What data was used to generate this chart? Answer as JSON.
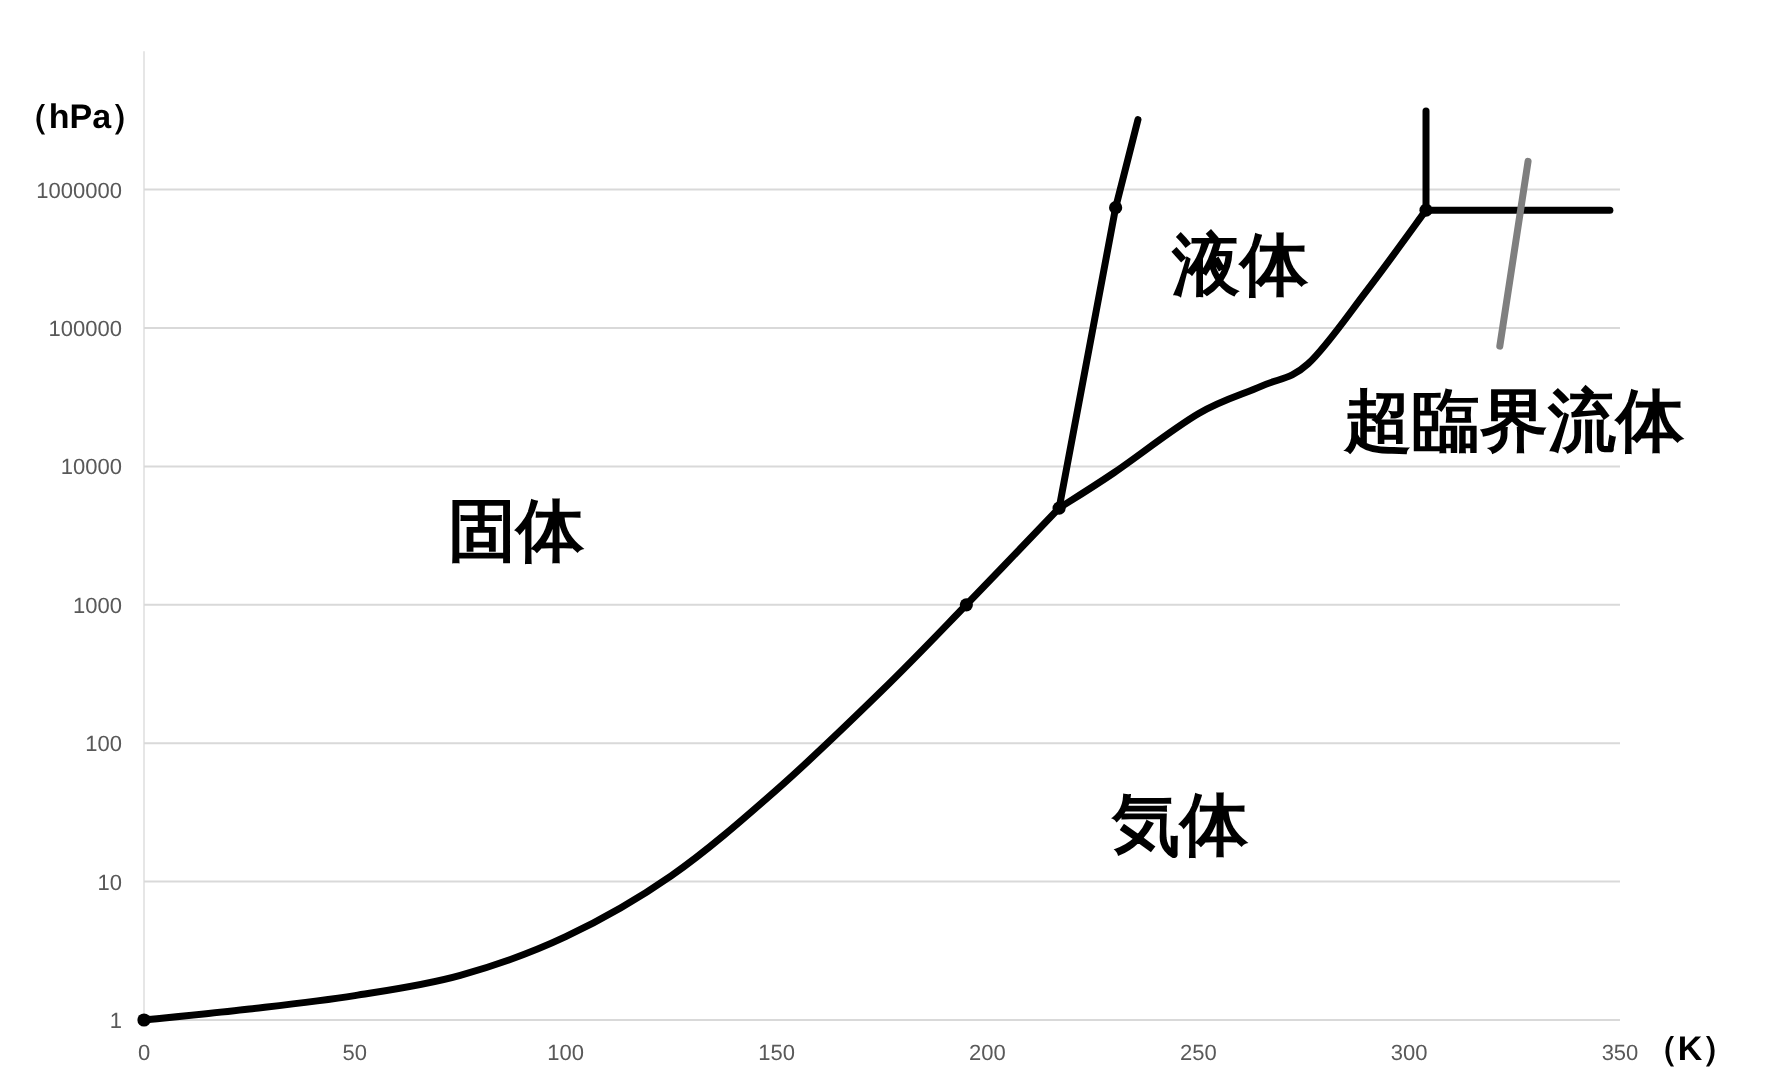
{
  "chart_data": {
    "type": "line",
    "xlabel": "（K）",
    "ylabel": "（hPa）",
    "log": "y",
    "grid": "y",
    "line_style": "solid",
    "xlim": [
      0,
      350
    ],
    "ylim": [
      1,
      10000000
    ],
    "xticks": [
      0,
      50,
      100,
      150,
      200,
      250,
      300,
      350
    ],
    "yticks": [
      1,
      10,
      100,
      1000,
      10000,
      100000,
      1000000
    ],
    "annotations": [
      "固体",
      "液体",
      "気体",
      "超臨界流体"
    ],
    "series": [
      {
        "color": "#000000",
        "x": [
          0,
          25,
          50,
          75,
          100,
          125,
          150,
          175,
          195,
          217
        ],
        "values": [
          1,
          1.2,
          1.5,
          2.1,
          4,
          11,
          46,
          240,
          1000,
          5000
        ]
      },
      {
        "color": "#000000",
        "x": [
          217,
          230.4,
          235.7
        ],
        "values": [
          5000,
          740000,
          3200000
        ]
      },
      {
        "color": "#000000",
        "x": [
          217,
          230,
          250,
          265,
          276,
          290,
          304
        ],
        "values": [
          5000,
          9000,
          24000,
          38000,
          55000,
          187000,
          710000
        ]
      },
      {
        "color": "#000000",
        "x": [
          304,
          304
        ],
        "values": [
          710000,
          3700000
        ]
      },
      {
        "color": "#000000",
        "x": [
          304,
          347.6
        ],
        "values": [
          710000,
          710000
        ]
      },
      {
        "color": "#7f7f7f",
        "x": [
          321.5,
          328.2
        ],
        "values": [
          74000,
          1600000
        ]
      },
      {
        "type": "scatter",
        "marker": "circle",
        "color": "#000000",
        "x": [
          0,
          195,
          217,
          230.4,
          304
        ],
        "values": [
          1,
          1000,
          5000,
          740000,
          710000
        ]
      }
    ]
  }
}
